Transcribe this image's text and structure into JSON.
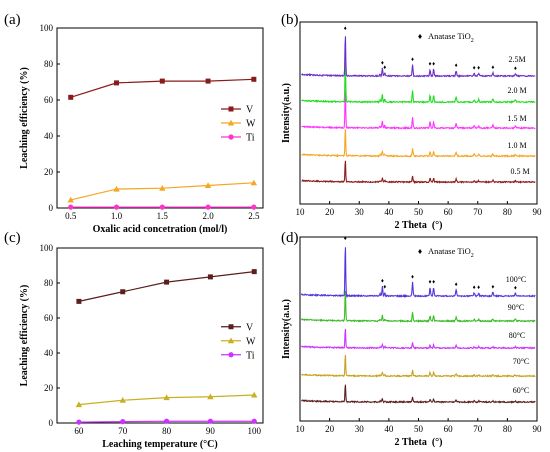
{
  "chart_data": [
    {
      "panel": "(a)",
      "type": "line",
      "xlabel": "Oxalic acid concetration (mol/l)",
      "ylabel": "Leaching efficiency (%)",
      "xlim": [
        0.35,
        2.6
      ],
      "ylim": [
        0,
        100
      ],
      "xticks": [
        "0.5",
        "1.0",
        "1.5",
        "2.0",
        "2.5"
      ],
      "yticks": [
        "0",
        "20",
        "40",
        "60",
        "80",
        "100"
      ],
      "legend_position": "right",
      "x": [
        0.5,
        1.0,
        1.5,
        2.0,
        2.5
      ],
      "series": [
        {
          "name": "V",
          "values": [
            61.5,
            69.5,
            70.5,
            70.5,
            71.5
          ],
          "color": "#8B1A1A",
          "marker": "square"
        },
        {
          "name": "W",
          "values": [
            4.5,
            10.5,
            11.0,
            12.5,
            14.0
          ],
          "color": "#F5A623",
          "marker": "triangle"
        },
        {
          "name": "Ti",
          "values": [
            0.5,
            0.5,
            0.5,
            0.5,
            0.5
          ],
          "color": "#FF33CC",
          "marker": "circle"
        }
      ]
    },
    {
      "panel": "(b)",
      "type": "line",
      "xlabel": "2 Theta  (°)",
      "ylabel": "Intensity(a.u.)",
      "xlim": [
        10,
        90
      ],
      "xticks": [
        "10",
        "20",
        "30",
        "40",
        "50",
        "60",
        "70",
        "80",
        "90"
      ],
      "phase_legend": "Anatase TiO",
      "phase_subscript": "2",
      "peak_markers_2theta": [
        25.3,
        37.8,
        38.6,
        48.0,
        53.9,
        55.1,
        62.7,
        68.8,
        70.3,
        75.1,
        82.7
      ],
      "series": [
        {
          "name": "0.5 M",
          "color": "#8B1A1A"
        },
        {
          "name": "1.0 M",
          "color": "#F5A623"
        },
        {
          "name": "1.5 M",
          "color": "#FF33FF"
        },
        {
          "name": "2.0 M",
          "color": "#22DD22"
        },
        {
          "name": "2.5M",
          "color": "#6A2DC9"
        }
      ]
    },
    {
      "panel": "(c)",
      "type": "line",
      "xlabel": "Leaching temperature (°C)",
      "ylabel": "Leaching efficiency (%)",
      "xlim": [
        55,
        102
      ],
      "ylim": [
        0,
        100
      ],
      "xticks": [
        "60",
        "70",
        "80",
        "90",
        "100"
      ],
      "yticks": [
        "0",
        "20",
        "40",
        "60",
        "80",
        "100"
      ],
      "legend_position": "right",
      "x": [
        60,
        70,
        80,
        90,
        100
      ],
      "series": [
        {
          "name": "V",
          "values": [
            69.5,
            75.0,
            80.5,
            83.5,
            86.5
          ],
          "color": "#5C1E1E",
          "marker": "square"
        },
        {
          "name": "W",
          "values": [
            10.5,
            13.0,
            14.5,
            15.0,
            16.0
          ],
          "color": "#C9B021",
          "marker": "triangle"
        },
        {
          "name": "Ti",
          "values": [
            0.5,
            0.8,
            1.0,
            1.0,
            1.0
          ],
          "color": "#CC33FF",
          "marker": "circle"
        }
      ]
    },
    {
      "panel": "(d)",
      "type": "line",
      "xlabel": "2 Theta  (°)",
      "ylabel": "Intensity(a.u.)",
      "xlim": [
        10,
        90
      ],
      "xticks": [
        "10",
        "20",
        "30",
        "40",
        "50",
        "60",
        "70",
        "80",
        "90"
      ],
      "phase_legend": "Anatase TiO",
      "phase_subscript": "2",
      "peak_markers_2theta": [
        25.3,
        37.8,
        38.6,
        48.0,
        53.9,
        55.1,
        62.7,
        68.8,
        70.3,
        75.1,
        82.7
      ],
      "series": [
        {
          "name": "60°C",
          "color": "#5C1E1E"
        },
        {
          "name": "70°C",
          "color": "#C9A21E"
        },
        {
          "name": "80°C",
          "color": "#CC33FF"
        },
        {
          "name": "90°C",
          "color": "#3DBB2A"
        },
        {
          "name": "100°C",
          "color": "#5533DD"
        }
      ]
    }
  ]
}
